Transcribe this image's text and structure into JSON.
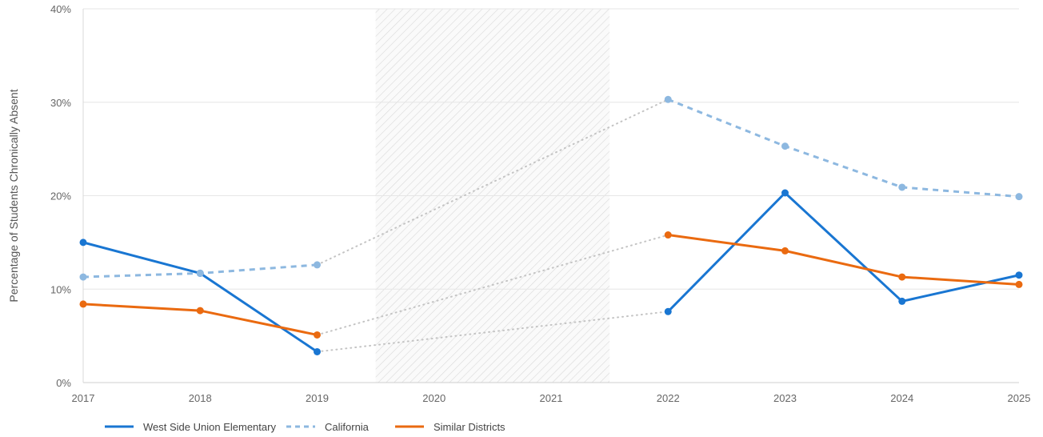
{
  "chart_data": {
    "type": "line",
    "title": "",
    "xlabel": "",
    "ylabel": "Percentage of Students Chronically Absent",
    "categories": [
      "2017",
      "2018",
      "2019",
      "2020",
      "2021",
      "2022",
      "2023",
      "2024",
      "2025"
    ],
    "y_ticks": [
      "0%",
      "10%",
      "20%",
      "30%",
      "40%"
    ],
    "ylim": [
      0,
      40
    ],
    "grid": true,
    "legend_position": "bottom-left",
    "shaded_period": {
      "from": "2020",
      "to": "2021",
      "pattern": "diagonal-hatch"
    },
    "gap_connector_style": "dotted-gray",
    "series": [
      {
        "name": "West Side Union Elementary",
        "color": "#1976d2",
        "line_style": "solid",
        "values": [
          15.0,
          11.7,
          3.3,
          null,
          null,
          7.6,
          20.3,
          8.7,
          11.5
        ]
      },
      {
        "name": "California",
        "color": "#8db8e0",
        "line_style": "dashed",
        "values": [
          11.3,
          11.7,
          12.6,
          null,
          null,
          30.3,
          25.3,
          20.9,
          19.9
        ]
      },
      {
        "name": "Similar Districts",
        "color": "#ea6a10",
        "line_style": "solid",
        "values": [
          8.4,
          7.7,
          5.1,
          null,
          null,
          15.8,
          14.1,
          11.3,
          10.5
        ]
      }
    ]
  }
}
